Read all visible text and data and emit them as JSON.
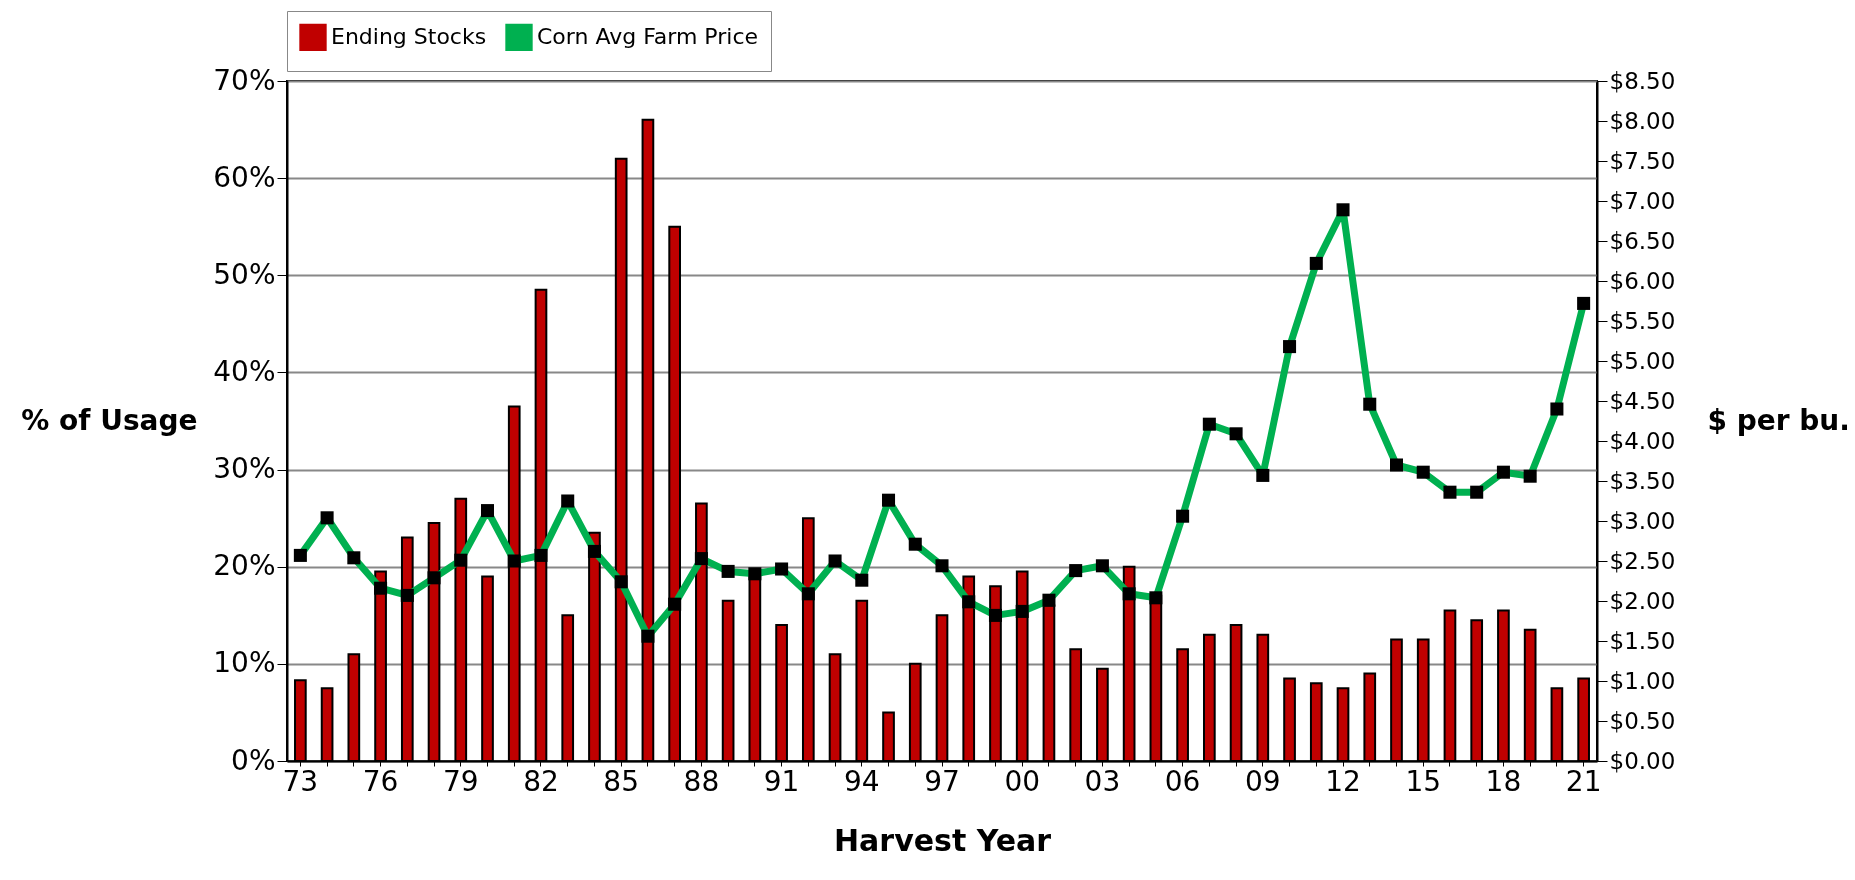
{
  "chart_data": {
    "type": "bar",
    "xlabel": "Harvest Year",
    "ylabel": "% of Usage",
    "y2label": "$ per bu.",
    "categories": [
      "73",
      null,
      null,
      "76",
      null,
      null,
      "79",
      null,
      null,
      "82",
      null,
      null,
      "85",
      null,
      null,
      "88",
      null,
      null,
      "91",
      null,
      null,
      "94",
      null,
      null,
      "97",
      null,
      null,
      "00",
      null,
      null,
      "03",
      null,
      null,
      "06",
      null,
      null,
      "09",
      null,
      null,
      "12",
      null,
      null,
      "15",
      null,
      null,
      "18",
      null,
      null,
      "21"
    ],
    "series": [
      {
        "name": "Ending Stocks",
        "color": "#c00000",
        "values": [
          8.3,
          7.5,
          11,
          19.5,
          23,
          24.5,
          27,
          19,
          36.5,
          48.5,
          15,
          23.5,
          62,
          66,
          55,
          26.5,
          16.5,
          19,
          14,
          25,
          11,
          16.5,
          5,
          10,
          15,
          19,
          18,
          19.5,
          16,
          11.5,
          9.5,
          20,
          17,
          11.5,
          13,
          14,
          13,
          8.5,
          8,
          7.5,
          9,
          12.5,
          12.5,
          15.5,
          14.5,
          15.5,
          13.5,
          7.5,
          8.5
        ]
      },
      {
        "name": "Corn Avg Farm Price",
        "type": "line",
        "axis": "y2",
        "color": "#00b050",
        "values": [
          2.57,
          3.04,
          2.54,
          2.16,
          2.07,
          2.29,
          2.51,
          3.13,
          2.5,
          2.57,
          3.25,
          2.62,
          2.24,
          1.56,
          1.96,
          2.53,
          2.37,
          2.34,
          2.4,
          2.09,
          2.5,
          2.26,
          3.26,
          2.71,
          2.44,
          1.99,
          1.82,
          1.87,
          2.01,
          2.38,
          2.44,
          2.09,
          2.04,
          3.06,
          4.21,
          4.09,
          3.57,
          5.18,
          6.22,
          6.89,
          4.46,
          3.7,
          3.61,
          3.36,
          3.36,
          3.61,
          3.56,
          4.4,
          5.72
        ]
      }
    ],
    "ylim": [
      0,
      70
    ],
    "yticks": [
      {
        "value": 0,
        "label": "0%"
      },
      {
        "value": 10,
        "label": "10%"
      },
      {
        "value": 20,
        "label": "20%"
      },
      {
        "value": 30,
        "label": "30%"
      },
      {
        "value": 40,
        "label": "40%"
      },
      {
        "value": 50,
        "label": "50%"
      },
      {
        "value": 60,
        "label": "60%"
      },
      {
        "value": 70,
        "label": "70%"
      }
    ],
    "y2lim": [
      0,
      8.5
    ],
    "y2ticks": [
      {
        "value": 0,
        "label": "$0.00"
      },
      {
        "value": 0.5,
        "label": "$0.50"
      },
      {
        "value": 1,
        "label": "$1.00"
      },
      {
        "value": 1.5,
        "label": "$1.50"
      },
      {
        "value": 2,
        "label": "$2.00"
      },
      {
        "value": 2.5,
        "label": "$2.50"
      },
      {
        "value": 3,
        "label": "$3.00"
      },
      {
        "value": 3.5,
        "label": "$3.50"
      },
      {
        "value": 4,
        "label": "$4.00"
      },
      {
        "value": 4.5,
        "label": "$4.50"
      },
      {
        "value": 5,
        "label": "$5.00"
      },
      {
        "value": 5.5,
        "label": "$5.50"
      },
      {
        "value": 6,
        "label": "$6.00"
      },
      {
        "value": 6.5,
        "label": "$6.50"
      },
      {
        "value": 7,
        "label": "$7.00"
      },
      {
        "value": 7.5,
        "label": "$7.50"
      },
      {
        "value": 8,
        "label": "$8.00"
      },
      {
        "value": 8.5,
        "label": "$8.50"
      }
    ],
    "grid": "y",
    "legend": "top",
    "marker": "square"
  }
}
